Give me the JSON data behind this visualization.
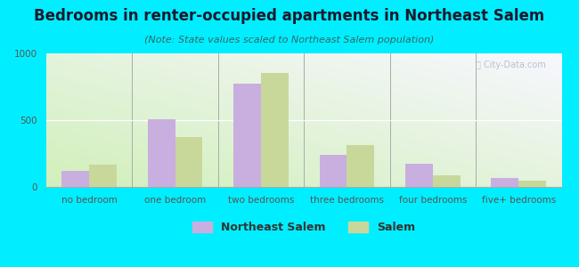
{
  "title": "Bedrooms in renter-occupied apartments in Northeast Salem",
  "subtitle": "(Note: State values scaled to Northeast Salem population)",
  "categories": [
    "no bedroom",
    "one bedroom",
    "two bedrooms",
    "three bedrooms",
    "four bedrooms",
    "five+ bedrooms"
  ],
  "northeast_salem": [
    120,
    510,
    775,
    240,
    175,
    65
  ],
  "salem": [
    165,
    375,
    855,
    315,
    90,
    45
  ],
  "color_ne": "#c9aee0",
  "color_salem": "#c8d89a",
  "background_outer": "#00eeff",
  "bar_width": 0.32,
  "ylim": [
    0,
    1000
  ],
  "yticks": [
    0,
    500,
    1000
  ],
  "legend_labels": [
    "Northeast Salem",
    "Salem"
  ],
  "title_fontsize": 12,
  "subtitle_fontsize": 8,
  "tick_fontsize": 7.5,
  "legend_fontsize": 9
}
